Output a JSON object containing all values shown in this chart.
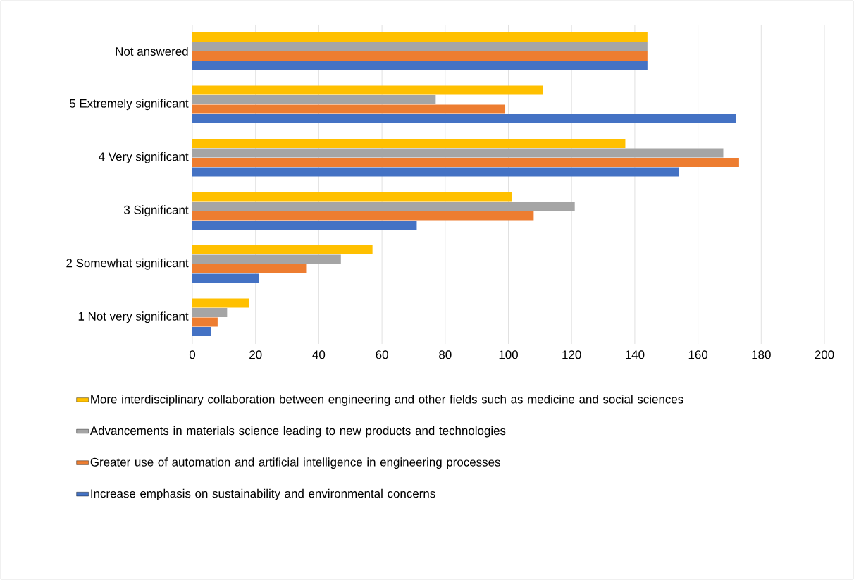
{
  "chart_data": {
    "type": "bar",
    "orientation": "horizontal",
    "categories": [
      "Not answered",
      "5 Extremely significant",
      "4 Very significant",
      "3 Significant",
      "2 Somewhat significant",
      "1 Not very significant"
    ],
    "series": [
      {
        "name": "Increase emphasis on sustainability and environmental  concerns",
        "color": "#4472c4",
        "values": [
          144,
          172,
          154,
          71,
          21,
          6
        ]
      },
      {
        "name": "Greater use of automation and artificial intelligence in engineering processes",
        "color": "#ed7d31",
        "values": [
          144,
          99,
          173,
          108,
          36,
          8
        ]
      },
      {
        "name": "Advancements in materials science leading to new products and technologies",
        "color": "#a5a5a5",
        "values": [
          144,
          77,
          168,
          121,
          47,
          11
        ]
      },
      {
        "name": "More interdisciplinary collaboration between engineering and other fields such as medicine and social sciences",
        "color": "#ffc000",
        "values": [
          144,
          111,
          137,
          101,
          57,
          18
        ]
      }
    ],
    "xlim": [
      0,
      200
    ],
    "xticks": [
      0,
      20,
      40,
      60,
      80,
      100,
      120,
      140,
      160,
      180,
      200
    ],
    "grid": "x",
    "legend": "bottom"
  }
}
